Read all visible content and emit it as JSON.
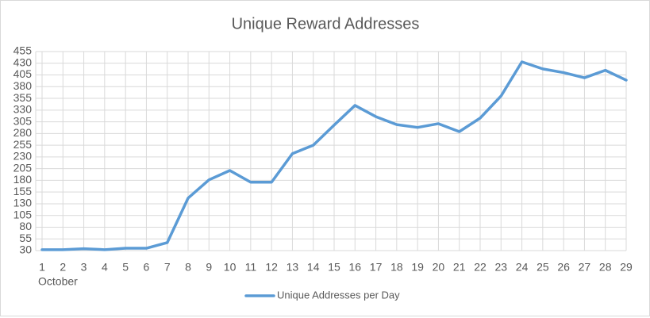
{
  "chart_data": {
    "type": "line",
    "title": "Unique Reward Addresses",
    "categories": [
      "1",
      "2",
      "3",
      "4",
      "5",
      "6",
      "7",
      "8",
      "9",
      "10",
      "11",
      "12",
      "13",
      "14",
      "15",
      "16",
      "17",
      "18",
      "19",
      "20",
      "21",
      "22",
      "23",
      "24",
      "25",
      "26",
      "27",
      "28",
      "29"
    ],
    "x_group_label": "October",
    "series": [
      {
        "name": "Unique Addresses per Day",
        "color": "#5b9bd5",
        "values": [
          32,
          32,
          34,
          32,
          35,
          35,
          47,
          142,
          181,
          201,
          176,
          176,
          237,
          255,
          298,
          340,
          316,
          299,
          293,
          301,
          284,
          313,
          360,
          433,
          418,
          410,
          399,
          415,
          394
        ]
      }
    ],
    "ylim": [
      30,
      455
    ],
    "yticks": [
      30,
      55,
      80,
      105,
      130,
      155,
      180,
      205,
      230,
      255,
      280,
      305,
      330,
      355,
      380,
      405,
      430,
      455
    ],
    "grid": true,
    "legend": "bottom"
  }
}
